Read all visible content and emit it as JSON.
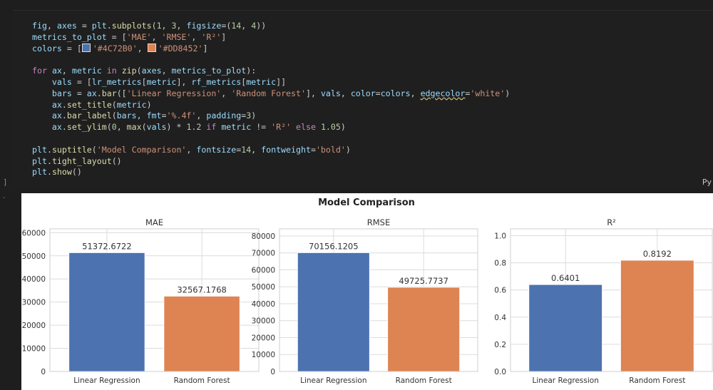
{
  "code": {
    "lines": [
      "fig, axes = plt.subplots(1, 3, figsize=(14, 4))",
      "metrics_to_plot = ['MAE', 'RMSE', 'R²']",
      "colors = ['#4C72B0', '#DD8452']",
      "",
      "for ax, metric in zip(axes, metrics_to_plot):",
      "    vals = [lr_metrics[metric], rf_metrics[metric]]",
      "    bars = ax.bar(['Linear Regression', 'Random Forest'], vals, color=colors, edgecolor='white')",
      "    ax.set_title(metric)",
      "    ax.bar_label(bars, fmt='%.4f', padding=3)",
      "    ax.set_ylim(0, max(vals) * 1.2 if metric != 'R²' else 1.05)",
      "",
      "plt.suptitle('Model Comparison', fontsize=14, fontweight='bold')",
      "plt.tight_layout()",
      "plt.show()"
    ],
    "bracket": "]",
    "language_label": "Py",
    "cell_marker": "."
  },
  "chart_data": {
    "type": "bar",
    "suptitle": "Model Comparison",
    "colors": [
      "#4C72B0",
      "#DD8452"
    ],
    "categories": [
      "Linear Regression",
      "Random Forest"
    ],
    "subplots": [
      {
        "title": "MAE",
        "values": [
          51372.6722,
          32567.1768
        ],
        "labels": [
          "51372.6722",
          "32567.1768"
        ],
        "ylim": [
          0,
          61647.2066
        ],
        "yticks": [
          0,
          10000,
          20000,
          30000,
          40000,
          50000,
          60000
        ]
      },
      {
        "title": "RMSE",
        "values": [
          70156.1205,
          49725.7737
        ],
        "labels": [
          "70156.1205",
          "49725.7737"
        ],
        "ylim": [
          0,
          84187.3446
        ],
        "yticks": [
          0,
          10000,
          20000,
          30000,
          40000,
          50000,
          60000,
          70000,
          80000
        ]
      },
      {
        "title": "R²",
        "values": [
          0.6401,
          0.8192
        ],
        "labels": [
          "0.6401",
          "0.8192"
        ],
        "ylim": [
          0,
          1.05
        ],
        "yticks": [
          0.0,
          0.2,
          0.4,
          0.6,
          0.8,
          1.0
        ],
        "ytick_labels": [
          "0.0",
          "0.2",
          "0.4",
          "0.6",
          "0.8",
          "1.0"
        ]
      }
    ],
    "grid": true,
    "legend": "none"
  }
}
